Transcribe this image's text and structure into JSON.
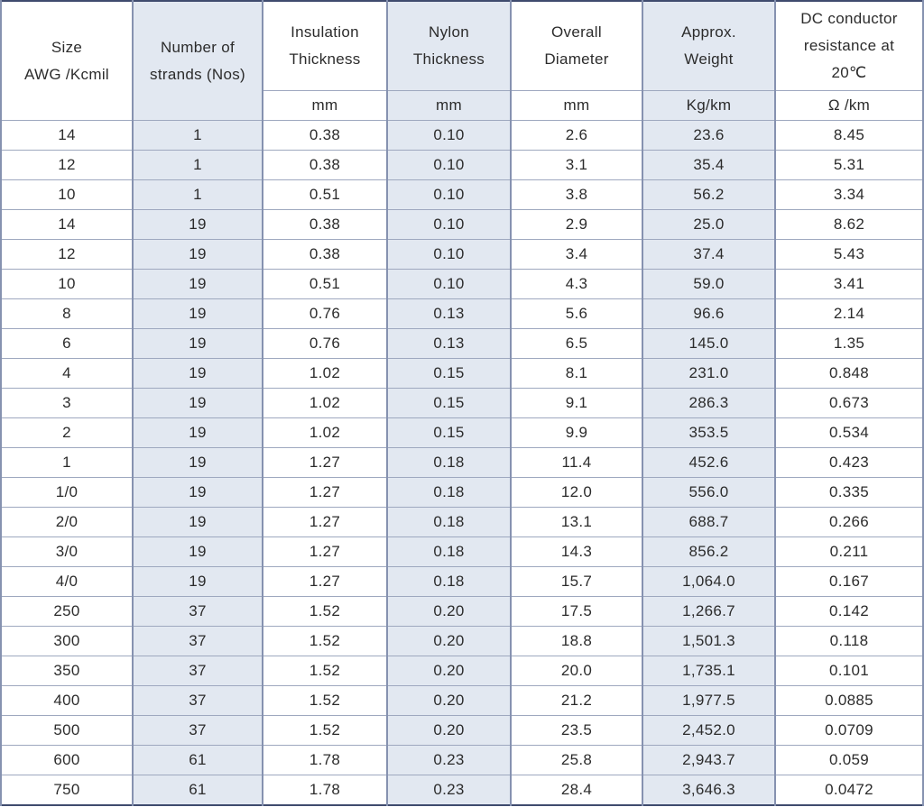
{
  "table": {
    "name": "wire-specification-table",
    "columns": [
      {
        "id": "size",
        "fill": "white",
        "title_lines": [
          "Size",
          "AWG /Kcmil"
        ],
        "unit": null
      },
      {
        "id": "strands",
        "fill": "blue",
        "title_lines": [
          "Number of",
          "strands (Nos)"
        ],
        "unit": null
      },
      {
        "id": "insulation",
        "fill": "white",
        "title_lines": [
          "Insulation",
          "Thickness"
        ],
        "unit": "mm"
      },
      {
        "id": "nylon",
        "fill": "blue",
        "title_lines": [
          "Nylon",
          "Thickness"
        ],
        "unit": "mm"
      },
      {
        "id": "diameter",
        "fill": "white",
        "title_lines": [
          "Overall",
          "Diameter"
        ],
        "unit": "mm"
      },
      {
        "id": "weight",
        "fill": "blue",
        "title_lines": [
          "Approx.",
          "Weight"
        ],
        "unit": "Kg/km"
      },
      {
        "id": "resistance",
        "fill": "white",
        "title_lines": [
          "DC conductor",
          "resistance at",
          "20℃"
        ],
        "unit": "Ω /km"
      }
    ],
    "rows": [
      [
        "14",
        "1",
        "0.38",
        "0.10",
        "2.6",
        "23.6",
        "8.45"
      ],
      [
        "12",
        "1",
        "0.38",
        "0.10",
        "3.1",
        "35.4",
        "5.31"
      ],
      [
        "10",
        "1",
        "0.51",
        "0.10",
        "3.8",
        "56.2",
        "3.34"
      ],
      [
        "14",
        "19",
        "0.38",
        "0.10",
        "2.9",
        "25.0",
        "8.62"
      ],
      [
        "12",
        "19",
        "0.38",
        "0.10",
        "3.4",
        "37.4",
        "5.43"
      ],
      [
        "10",
        "19",
        "0.51",
        "0.10",
        "4.3",
        "59.0",
        "3.41"
      ],
      [
        "8",
        "19",
        "0.76",
        "0.13",
        "5.6",
        "96.6",
        "2.14"
      ],
      [
        "6",
        "19",
        "0.76",
        "0.13",
        "6.5",
        "145.0",
        "1.35"
      ],
      [
        "4",
        "19",
        "1.02",
        "0.15",
        "8.1",
        "231.0",
        "0.848"
      ],
      [
        "3",
        "19",
        "1.02",
        "0.15",
        "9.1",
        "286.3",
        "0.673"
      ],
      [
        "2",
        "19",
        "1.02",
        "0.15",
        "9.9",
        "353.5",
        "0.534"
      ],
      [
        "1",
        "19",
        "1.27",
        "0.18",
        "11.4",
        "452.6",
        "0.423"
      ],
      [
        "1/0",
        "19",
        "1.27",
        "0.18",
        "12.0",
        "556.0",
        "0.335"
      ],
      [
        "2/0",
        "19",
        "1.27",
        "0.18",
        "13.1",
        "688.7",
        "0.266"
      ],
      [
        "3/0",
        "19",
        "1.27",
        "0.18",
        "14.3",
        "856.2",
        "0.211"
      ],
      [
        "4/0",
        "19",
        "1.27",
        "0.18",
        "15.7",
        "1,064.0",
        "0.167"
      ],
      [
        "250",
        "37",
        "1.52",
        "0.20",
        "17.5",
        "1,266.7",
        "0.142"
      ],
      [
        "300",
        "37",
        "1.52",
        "0.20",
        "18.8",
        "1,501.3",
        "0.118"
      ],
      [
        "350",
        "37",
        "1.52",
        "0.20",
        "20.0",
        "1,735.1",
        "0.101"
      ],
      [
        "400",
        "37",
        "1.52",
        "0.20",
        "21.2",
        "1,977.5",
        "0.0885"
      ],
      [
        "500",
        "37",
        "1.52",
        "0.20",
        "23.5",
        "2,452.0",
        "0.0709"
      ],
      [
        "600",
        "61",
        "1.78",
        "0.23",
        "25.8",
        "2,943.7",
        "0.059"
      ],
      [
        "750",
        "61",
        "1.78",
        "0.23",
        "28.4",
        "3,646.3",
        "0.0472"
      ]
    ]
  },
  "colors": {
    "column_fill_blue": "#e2e8f1",
    "column_fill_white": "#ffffff",
    "border_outer": "#3f4b6e",
    "border_vertical": "#8692b0",
    "border_horizontal": "#9ea8bf",
    "text": "#2c2c2c"
  }
}
